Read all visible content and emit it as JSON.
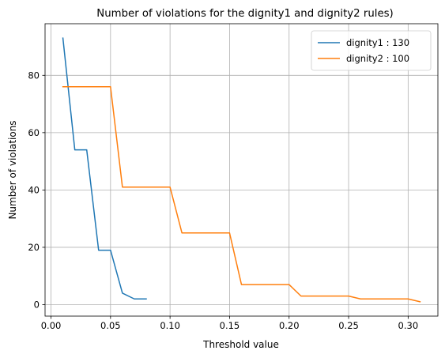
{
  "chart_data": {
    "type": "line",
    "title": "Number of violations for the dignity1 and dignity2 rules)",
    "xlabel": "Threshold value",
    "ylabel": "Number of violations",
    "xlim": [
      -0.005,
      0.325
    ],
    "ylim": [
      -4,
      98
    ],
    "xticks": [
      0.0,
      0.05,
      0.1,
      0.15,
      0.2,
      0.25,
      0.3
    ],
    "xtick_labels": [
      "0.00",
      "0.05",
      "0.10",
      "0.15",
      "0.20",
      "0.25",
      "0.30"
    ],
    "yticks": [
      0,
      20,
      40,
      60,
      80
    ],
    "ytick_labels": [
      "0",
      "20",
      "40",
      "60",
      "80"
    ],
    "grid": true,
    "legend_position": "top-right",
    "series": [
      {
        "name": "dignity1 : 130",
        "color": "#1f77b4",
        "x": [
          0.01,
          0.02,
          0.03,
          0.04,
          0.05,
          0.06,
          0.07,
          0.08
        ],
        "y": [
          93,
          54,
          54,
          19,
          19,
          4,
          2,
          2
        ]
      },
      {
        "name": "dignity2 : 100",
        "color": "#ff7f0e",
        "x": [
          0.01,
          0.02,
          0.03,
          0.04,
          0.05,
          0.06,
          0.07,
          0.08,
          0.09,
          0.1,
          0.11,
          0.12,
          0.13,
          0.14,
          0.15,
          0.16,
          0.17,
          0.18,
          0.19,
          0.2,
          0.21,
          0.22,
          0.23,
          0.24,
          0.25,
          0.26,
          0.27,
          0.28,
          0.29,
          0.3,
          0.31
        ],
        "y": [
          76,
          76,
          76,
          76,
          76,
          41,
          41,
          41,
          41,
          41,
          25,
          25,
          25,
          25,
          25,
          7,
          7,
          7,
          7,
          7,
          3,
          3,
          3,
          3,
          3,
          2,
          2,
          2,
          2,
          2,
          1
        ]
      }
    ]
  }
}
